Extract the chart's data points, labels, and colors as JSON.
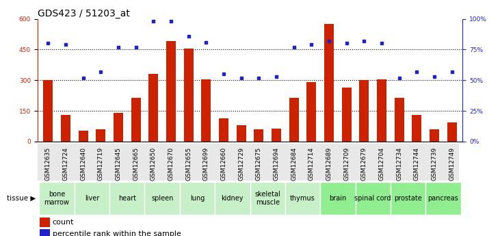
{
  "title": "GDS423 / 51203_at",
  "samples": [
    "GSM12635",
    "GSM12724",
    "GSM12640",
    "GSM12719",
    "GSM12645",
    "GSM12665",
    "GSM12650",
    "GSM12670",
    "GSM12655",
    "GSM12699",
    "GSM12660",
    "GSM12729",
    "GSM12675",
    "GSM12694",
    "GSM12684",
    "GSM12714",
    "GSM12689",
    "GSM12709",
    "GSM12679",
    "GSM12704",
    "GSM12734",
    "GSM12744",
    "GSM12739",
    "GSM12749"
  ],
  "counts": [
    300,
    130,
    55,
    60,
    140,
    215,
    330,
    490,
    455,
    305,
    115,
    80,
    60,
    65,
    215,
    290,
    575,
    265,
    300,
    305,
    215,
    130,
    60,
    95
  ],
  "percentiles": [
    80,
    79,
    52,
    57,
    77,
    77,
    98,
    98,
    86,
    81,
    55,
    52,
    52,
    53,
    77,
    79,
    82,
    80,
    82,
    80,
    52,
    57,
    53,
    57
  ],
  "tissues": [
    {
      "name": "bone\nmarrow",
      "start": 0,
      "end": 2,
      "color": "#c8f0c8"
    },
    {
      "name": "liver",
      "start": 2,
      "end": 4,
      "color": "#c8f0c8"
    },
    {
      "name": "heart",
      "start": 4,
      "end": 6,
      "color": "#c8f0c8"
    },
    {
      "name": "spleen",
      "start": 6,
      "end": 8,
      "color": "#c8f0c8"
    },
    {
      "name": "lung",
      "start": 8,
      "end": 10,
      "color": "#c8f0c8"
    },
    {
      "name": "kidney",
      "start": 10,
      "end": 12,
      "color": "#c8f0c8"
    },
    {
      "name": "skeletal\nmuscle",
      "start": 12,
      "end": 14,
      "color": "#c8f0c8"
    },
    {
      "name": "thymus",
      "start": 14,
      "end": 16,
      "color": "#c8f0c8"
    },
    {
      "name": "brain",
      "start": 16,
      "end": 18,
      "color": "#90ee90"
    },
    {
      "name": "spinal cord",
      "start": 18,
      "end": 20,
      "color": "#90ee90"
    },
    {
      "name": "prostate",
      "start": 20,
      "end": 22,
      "color": "#90ee90"
    },
    {
      "name": "pancreas",
      "start": 22,
      "end": 24,
      "color": "#90ee90"
    }
  ],
  "bar_color": "#cc2200",
  "dot_color": "#2222cc",
  "ylim_left": [
    0,
    600
  ],
  "ylim_right": [
    0,
    100
  ],
  "yticks_left": [
    0,
    150,
    300,
    450,
    600
  ],
  "yticks_right": [
    0,
    25,
    50,
    75,
    100
  ],
  "ytick_labels_left": [
    "0",
    "150",
    "300",
    "450",
    "600"
  ],
  "ytick_labels_right": [
    "0%",
    "25%",
    "50%",
    "75%",
    "100%"
  ],
  "background_color": "#ffffff",
  "title_fontsize": 10,
  "tick_fontsize": 6.5,
  "tissue_fontsize": 7,
  "legend_fontsize": 8
}
